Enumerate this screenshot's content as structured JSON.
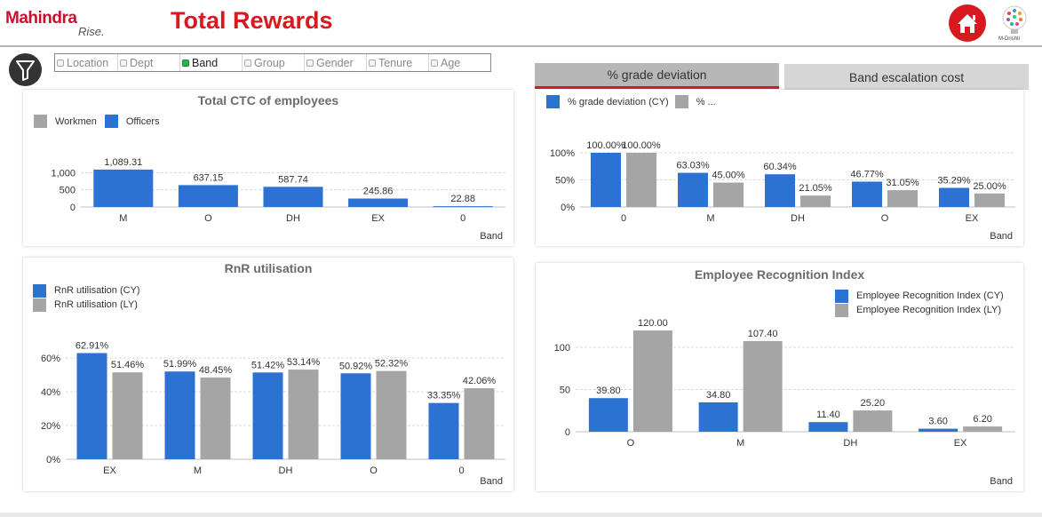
{
  "header": {
    "logo": "Mahindra",
    "logo_tagline": "Rise.",
    "title": "Total Rewards",
    "home_icon": "home-icon",
    "mdrishti_label": "M-Drishti"
  },
  "filter": {
    "icon": "funnel-icon",
    "items": [
      {
        "label": "Location",
        "active": false
      },
      {
        "label": "Dept",
        "active": false
      },
      {
        "label": "Band",
        "active": true
      },
      {
        "label": "Group",
        "active": false
      },
      {
        "label": "Gender",
        "active": false
      },
      {
        "label": "Tenure",
        "active": false
      },
      {
        "label": "Age",
        "active": false
      }
    ]
  },
  "tabs": [
    {
      "label": "% grade deviation",
      "active": true
    },
    {
      "label": "Band escalation cost",
      "active": false
    }
  ],
  "colors": {
    "accent": "#d71920",
    "series_cy": "#2c72d2",
    "series_ly": "#a5a5a5"
  },
  "panels": {
    "ctc": {
      "title": "Total CTC of employees",
      "legend": [
        "Workmen",
        "Officers"
      ],
      "axis_label": "Band"
    },
    "grade": {
      "legend": [
        "% grade deviation (CY)",
        "% ..."
      ],
      "axis_label": "Band"
    },
    "rnr": {
      "title": "RnR utilisation",
      "legend": [
        "RnR utilisation (CY)",
        "RnR utilisation (LY)"
      ],
      "axis_label": "Band"
    },
    "eri": {
      "title": "Employee Recognition Index",
      "legend": [
        "Employee Recognition Index (CY)",
        "Employee Recognition Index (LY)"
      ],
      "axis_label": "Band"
    }
  },
  "chart_data": [
    {
      "id": "ctc",
      "type": "bar",
      "title": "Total CTC of employees",
      "categories": [
        "M",
        "O",
        "DH",
        "EX",
        "0"
      ],
      "series": [
        {
          "name": "Officers",
          "values": [
            1089.31,
            637.15,
            587.74,
            245.86,
            22.88
          ]
        }
      ],
      "labels": [
        "1,089.31",
        "637.15",
        "587.74",
        "245.86",
        "22.88"
      ],
      "yticks": [
        "0",
        "500",
        "1,000"
      ],
      "ylim": [
        0,
        1100
      ],
      "xlabel": "Band"
    },
    {
      "id": "grade",
      "type": "bar",
      "title": "",
      "categories": [
        "0",
        "M",
        "DH",
        "O",
        "EX"
      ],
      "series": [
        {
          "name": "% grade deviation (CY)",
          "values": [
            100.0,
            63.03,
            60.34,
            46.77,
            35.29
          ],
          "labels": [
            "100.00%",
            "63.03%",
            "60.34%",
            "46.77%",
            "35.29%"
          ]
        },
        {
          "name": "% ...",
          "values": [
            100.0,
            45.0,
            21.05,
            31.05,
            25.0
          ],
          "labels": [
            "100.00%",
            "45.00%",
            "21.05%",
            "31.05%",
            "25.00%"
          ]
        }
      ],
      "yticks": [
        "0%",
        "50%",
        "100%"
      ],
      "ylim": [
        0,
        100
      ],
      "xlabel": "Band"
    },
    {
      "id": "rnr",
      "type": "bar",
      "title": "RnR utilisation",
      "categories": [
        "EX",
        "M",
        "DH",
        "O",
        "0"
      ],
      "series": [
        {
          "name": "RnR utilisation (CY)",
          "values": [
            62.91,
            51.99,
            51.42,
            50.92,
            33.35
          ],
          "labels": [
            "62.91%",
            "51.99%",
            "51.42%",
            "50.92%",
            "33.35%"
          ]
        },
        {
          "name": "RnR utilisation (LY)",
          "values": [
            51.46,
            48.45,
            53.14,
            52.32,
            42.06
          ],
          "labels": [
            "51.46%",
            "48.45%",
            "53.14%",
            "52.32%",
            "42.06%"
          ]
        }
      ],
      "yticks": [
        "0%",
        "20%",
        "40%",
        "60%"
      ],
      "ylim": [
        0,
        60
      ],
      "xlabel": "Band"
    },
    {
      "id": "eri",
      "type": "bar",
      "title": "Employee Recognition Index",
      "categories": [
        "O",
        "M",
        "DH",
        "EX"
      ],
      "series": [
        {
          "name": "Employee Recognition Index (CY)",
          "values": [
            39.8,
            34.8,
            11.4,
            3.6
          ],
          "labels": [
            "39.80",
            "34.80",
            "11.40",
            "3.60"
          ]
        },
        {
          "name": "Employee Recognition Index (LY)",
          "values": [
            120.0,
            107.4,
            25.2,
            6.2
          ],
          "labels": [
            "120.00",
            "107.40",
            "25.20",
            "6.20"
          ]
        }
      ],
      "yticks": [
        "0",
        "50",
        "100"
      ],
      "ylim": [
        0,
        100
      ],
      "xlabel": "Band"
    }
  ]
}
